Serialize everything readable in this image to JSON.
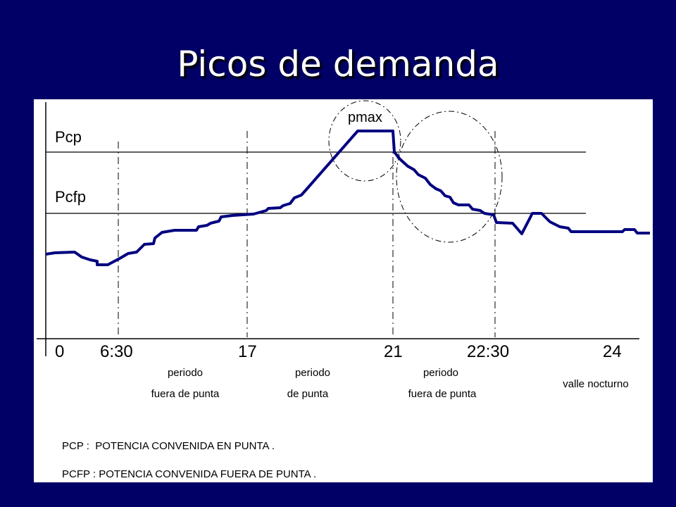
{
  "slide": {
    "title": "Picos de demanda"
  },
  "diagram": {
    "level_labels": {
      "pcp": "Pcp",
      "pcfp": "Pcfp"
    },
    "peak_label": "pmax",
    "hour_ticks": [
      "0",
      "6:30",
      "17",
      "21",
      "22:30",
      "24"
    ],
    "periods": [
      {
        "line1": "periodo",
        "line2": "fuera de punta"
      },
      {
        "line1": "periodo",
        "line2": "de punta"
      },
      {
        "line1": "periodo",
        "line2": "fuera de punta"
      },
      {
        "line1": "valle nocturno",
        "line2": ""
      }
    ],
    "legend": [
      "PCP :  POTENCIA CONVENIDA EN PUNTA .",
      "PCFP : POTENCIA CONVENIDA FUERA DE PUNTA ."
    ],
    "curve_color": "#000080"
  }
}
